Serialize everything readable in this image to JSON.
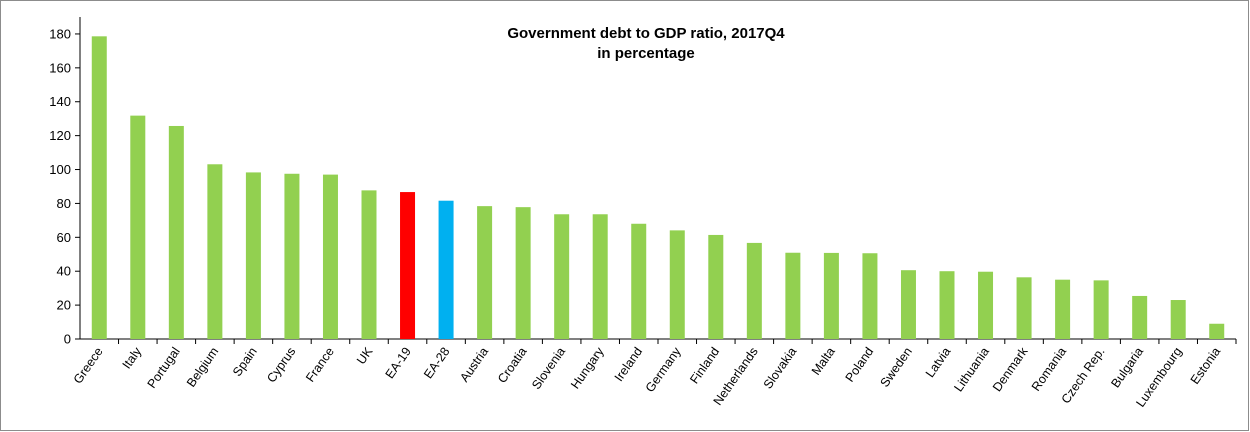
{
  "chart_data": {
    "type": "bar",
    "title": "Government debt to GDP ratio, 2017Q4",
    "subtitle": "in percentage",
    "xlabel": "",
    "ylabel": "",
    "ylim": [
      0,
      190
    ],
    "yticks": [
      0,
      20,
      40,
      60,
      80,
      100,
      120,
      140,
      160,
      180
    ],
    "grid": false,
    "legend": "none",
    "colors": {
      "default": "#92d050",
      "highlight_ea19": "#ff0000",
      "highlight_ea28": "#00b0f0"
    },
    "categories": [
      "Greece",
      "Italy",
      "Portugal",
      "Belgium",
      "Spain",
      "Cyprus",
      "France",
      "UK",
      "EA-19",
      "EA-28",
      "Austria",
      "Croatia",
      "Slovenia",
      "Hungary",
      "Ireland",
      "Germany",
      "Finland",
      "Netherlands",
      "Slovakia",
      "Malta",
      "Poland",
      "Sweden",
      "Latvia",
      "Lithuania",
      "Denmark",
      "Romania",
      "Czech Rep.",
      "Bulgaria",
      "Luxembourg",
      "Estonia"
    ],
    "values": [
      178.6,
      131.8,
      125.7,
      103.1,
      98.3,
      97.5,
      97.0,
      87.7,
      86.7,
      81.6,
      78.4,
      77.8,
      73.6,
      73.6,
      68.0,
      64.1,
      61.4,
      56.7,
      50.9,
      50.8,
      50.6,
      40.6,
      40.0,
      39.7,
      36.4,
      35.0,
      34.6,
      25.4,
      23.0,
      9.0
    ],
    "bar_colors": [
      "#92d050",
      "#92d050",
      "#92d050",
      "#92d050",
      "#92d050",
      "#92d050",
      "#92d050",
      "#92d050",
      "#ff0000",
      "#00b0f0",
      "#92d050",
      "#92d050",
      "#92d050",
      "#92d050",
      "#92d050",
      "#92d050",
      "#92d050",
      "#92d050",
      "#92d050",
      "#92d050",
      "#92d050",
      "#92d050",
      "#92d050",
      "#92d050",
      "#92d050",
      "#92d050",
      "#92d050",
      "#92d050",
      "#92d050",
      "#92d050"
    ]
  }
}
